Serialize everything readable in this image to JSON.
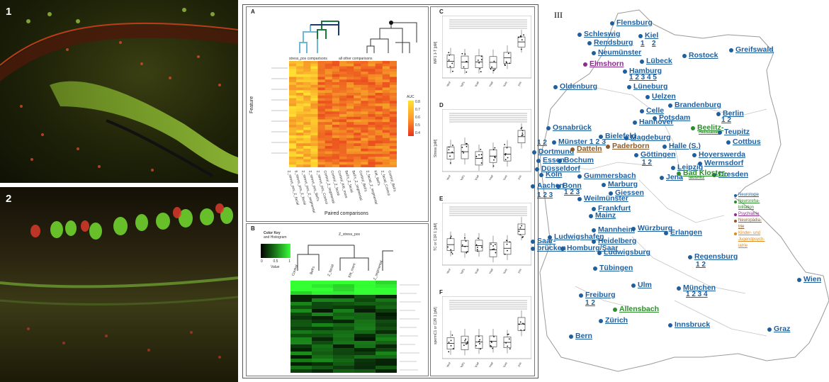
{
  "panel1": {
    "label": "1"
  },
  "panel2": {
    "label": "2"
  },
  "figure": {
    "A": {
      "letter": "A",
      "clusters": {
        "left": "stress_pos comparisons",
        "right": "all other comparisons"
      },
      "ylabel": "Feature",
      "xlabel": "Paired comparisons",
      "legend_title": "AUC",
      "legend_ticks": [
        "0.8",
        "0.7",
        "0.6",
        "0.5",
        "0.4"
      ],
      "columns": [
        "Z_stress_pos_Z_facial",
        "8_stress_pos_Z_facial",
        "Z_stress_pos_Z_segmental",
        "Z_stress_pos_Bell's",
        "Z_stress_pos_Control",
        "Control_Z_segmental",
        "Control_Z_facial",
        "Control_Kitt_more",
        "Bell's_Z_facial",
        "Bell's_Z_segmental",
        "Control_Bell's",
        "Z_facial_Z_segmental",
        "Kitt_Bell's",
        "Z_facial_Control",
        "Control_Bell's"
      ]
    },
    "B": {
      "letter": "B",
      "colorkey_title": "Color Key",
      "colorkey_sub": "and Histogram",
      "colorkey_ticks": [
        "0",
        "0.5",
        "1"
      ],
      "colorkey_xlabel": "Value",
      "group_label": "Z_stress_pos",
      "columns": [
        "Control",
        "Bell's",
        "Z_facial",
        "Kitt_more",
        "Z_segmental"
      ]
    },
    "C": {
      "letter": "C",
      "ylabel": "IMF1 1-T [pM]",
      "groups": [
        "Control",
        "Bell's",
        "Z_facial",
        "Z_segmental",
        "Z_more",
        "Z_stress_pos"
      ]
    },
    "D": {
      "letter": "D",
      "ylabel": "Stress [pM]",
      "groups": [
        "Control",
        "Bell's",
        "Z_facial",
        "Z_segmental",
        "Z_more",
        "Z_stress_pos"
      ]
    },
    "E": {
      "letter": "E",
      "ylabel": "TC or C1R 1 [pM]",
      "groups": [
        "Control",
        "Bell's",
        "Z_facial",
        "Z_segmental",
        "Z_more",
        "Z_stress_pos"
      ]
    },
    "F": {
      "letter": "F",
      "ylabel": "spermC1 or C2R 1 [pM]",
      "groups": [
        "Control",
        "Bell's",
        "Z_facial",
        "Z_segmental",
        "Z_more",
        "Z_stress_pos"
      ]
    }
  },
  "map": {
    "roman": "III",
    "colors": {
      "city": "#1f5f9e",
      "psych": "#8b2c8f",
      "neuro_rehab": "#2e8b2e",
      "brown": "#8b5a2b",
      "orange": "#e08a1e"
    },
    "cities": [
      {
        "name": "Flensburg"
      },
      {
        "name": "Schleswig"
      },
      {
        "name": "Kiel"
      },
      {
        "name": "1"
      },
      {
        "name": "2"
      },
      {
        "name": "Rendsburg"
      },
      {
        "name": "Neumünster"
      },
      {
        "name": "Rostock"
      },
      {
        "name": "Greifswald"
      },
      {
        "name": "Lübeck"
      },
      {
        "name": "Elmshorn"
      },
      {
        "name": "Hamburg"
      },
      {
        "name": "1 2 3 4 5"
      },
      {
        "name": "Lüneburg"
      },
      {
        "name": "Oldenburg"
      },
      {
        "name": "Uelzen"
      },
      {
        "name": "Brandenburg"
      },
      {
        "name": "Celle"
      },
      {
        "name": "Potsdam"
      },
      {
        "name": "Berlin"
      },
      {
        "name": "1 2"
      },
      {
        "name": "Osnabrück"
      },
      {
        "name": "Hannover"
      },
      {
        "name": "Beelitz-"
      },
      {
        "name": "Heilstätten"
      },
      {
        "name": "Teupitz"
      },
      {
        "name": "Bielefeld"
      },
      {
        "name": "Magdeburg"
      },
      {
        "name": "Cottbus"
      },
      {
        "name": "1 2"
      },
      {
        "name": "Münster 1 2 3"
      },
      {
        "name": "Paderborn"
      },
      {
        "name": "Halle (S.)"
      },
      {
        "name": "Hoyerswerda"
      },
      {
        "name": "Dortmund"
      },
      {
        "name": "Datteln"
      },
      {
        "name": "Göttingen"
      },
      {
        "name": "Wermsdorf"
      },
      {
        "name": "Essen"
      },
      {
        "name": "Bochum"
      },
      {
        "name": "1 2"
      },
      {
        "name": "Leipzig"
      },
      {
        "name": "Düsseldorf"
      },
      {
        "name": "Dresden"
      },
      {
        "name": "Jena"
      },
      {
        "name": "Bad Kloster-"
      },
      {
        "name": "lausnitz"
      },
      {
        "name": "Köln"
      },
      {
        "name": "Gummersbach"
      },
      {
        "name": "Aachen"
      },
      {
        "name": "Bonn"
      },
      {
        "name": "Marburg"
      },
      {
        "name": "Giessen"
      },
      {
        "name": "1 2 3"
      },
      {
        "name": "1 2 3"
      },
      {
        "name": "Weilmünster"
      },
      {
        "name": "Frankfurt"
      },
      {
        "name": "Mainz"
      },
      {
        "name": "Mannheim"
      },
      {
        "name": "Würzburg"
      },
      {
        "name": "Ludwigshafen"
      },
      {
        "name": "Heidelberg"
      },
      {
        "name": "Erlangen"
      },
      {
        "name": "Saar-"
      },
      {
        "name": "brücken"
      },
      {
        "name": "Homburg/Saar"
      },
      {
        "name": "Ludwigsburg"
      },
      {
        "name": "Regensburg"
      },
      {
        "name": "1 2"
      },
      {
        "name": "Tübingen"
      },
      {
        "name": "Wien"
      },
      {
        "name": "Ulm"
      },
      {
        "name": "Freiburg"
      },
      {
        "name": "1 2"
      },
      {
        "name": "München"
      },
      {
        "name": "1 2 3 4"
      },
      {
        "name": "Allensbach"
      },
      {
        "name": "Zürich"
      },
      {
        "name": "Innsbruck"
      },
      {
        "name": "Bern"
      },
      {
        "name": "Graz"
      }
    ],
    "legend": [
      {
        "text": "Neurologie"
      },
      {
        "text": "Neuroreha-"
      },
      {
        "text": "bilitation"
      },
      {
        "text": "Psychiatrie"
      },
      {
        "text": "Neuropädia-"
      },
      {
        "text": "trie"
      },
      {
        "text": "Kinder- und"
      },
      {
        "text": "Jugendpsych-"
      },
      {
        "text": "iatrie"
      }
    ]
  }
}
